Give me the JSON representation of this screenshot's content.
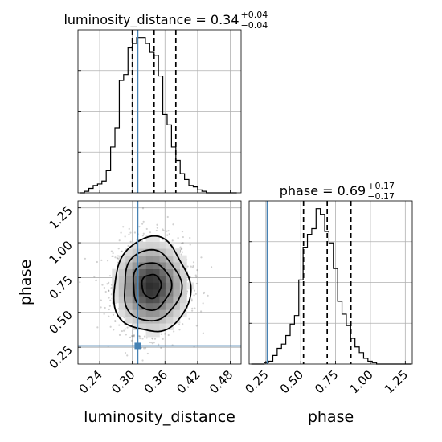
{
  "chart_data": {
    "type": "corner",
    "colors": {
      "truth": "#4682b4",
      "hist": "#000000",
      "density": "#808080",
      "grid": "#b0b0b0"
    },
    "parameters": [
      "luminosity_distance",
      "phase"
    ],
    "truth": {
      "luminosity_distance": 0.31,
      "phase": 0.26
    },
    "titles": {
      "luminosity_distance": {
        "prefix": "luminosity_distance = 0.34",
        "plus": "+0.04",
        "minus": "−0.04"
      },
      "phase": {
        "prefix": "phase = 0.69",
        "plus": "+0.17",
        "minus": "−0.17"
      }
    },
    "luminosity_distance": {
      "xlabel": "luminosity_distance",
      "xlim": [
        0.2,
        0.5
      ],
      "xticks": [
        0.24,
        0.3,
        0.36,
        0.42,
        0.48
      ],
      "xtick_labels": [
        "0.24",
        "0.30",
        "0.36",
        "0.42",
        "0.48"
      ],
      "quantiles": [
        0.3,
        0.34,
        0.38
      ],
      "hist": {
        "bin_edges": [
          0.204,
          0.212,
          0.22,
          0.228,
          0.236,
          0.244,
          0.252,
          0.26,
          0.268,
          0.276,
          0.284,
          0.292,
          0.3,
          0.308,
          0.316,
          0.324,
          0.332,
          0.34,
          0.348,
          0.356,
          0.364,
          0.372,
          0.38,
          0.388,
          0.396,
          0.404,
          0.412,
          0.42,
          0.428,
          0.436,
          0.444,
          0.452,
          0.46,
          0.468,
          0.476,
          0.484,
          0.492
        ],
        "counts": [
          0,
          1,
          3,
          5,
          6,
          8,
          15,
          31,
          44,
          76,
          80,
          98,
          101,
          105,
          105,
          101,
          95,
          93,
          79,
          53,
          46,
          31,
          22,
          13,
          9,
          5,
          4,
          2,
          1,
          0,
          0,
          0,
          0,
          0,
          0,
          0
        ]
      }
    },
    "phase": {
      "xlabel": "phase",
      "xlim": [
        0.13,
        1.3
      ],
      "xticks": [
        0.25,
        0.5,
        0.75,
        1.0,
        1.25
      ],
      "xtick_labels": [
        "0.25",
        "0.50",
        "0.75",
        "1.00",
        "1.25"
      ],
      "quantiles": [
        0.52,
        0.69,
        0.86
      ],
      "hist": {
        "bin_edges": [
          0.145,
          0.176,
          0.207,
          0.238,
          0.269,
          0.3,
          0.331,
          0.362,
          0.393,
          0.424,
          0.455,
          0.486,
          0.517,
          0.548,
          0.579,
          0.61,
          0.641,
          0.672,
          0.703,
          0.734,
          0.765,
          0.796,
          0.827,
          0.858,
          0.889,
          0.92,
          0.951,
          0.982,
          1.013,
          1.044,
          1.075,
          1.106,
          1.137,
          1.168,
          1.199,
          1.23,
          1.261,
          1.292
        ],
        "counts": [
          0,
          0,
          0,
          1,
          2,
          6,
          11,
          14,
          20,
          28,
          34,
          59,
          82,
          91,
          95,
          109,
          105,
          93,
          85,
          67,
          44,
          35,
          27,
          18,
          12,
          8,
          4,
          2,
          1,
          0,
          0,
          0,
          0,
          0,
          0,
          0,
          0
        ]
      }
    },
    "joint": {
      "xlim": [
        0.2,
        0.5
      ],
      "ylim": [
        0.13,
        1.3
      ],
      "ylabel": "phase",
      "yticks": [
        0.25,
        0.5,
        0.75,
        1.0,
        1.25
      ],
      "ytick_labels": [
        "0.25",
        "0.50",
        "0.75",
        "1.00",
        "1.25"
      ],
      "center": [
        0.335,
        0.69
      ],
      "sigma": [
        0.035,
        0.17
      ],
      "contour_levels": [
        0.5,
        1.0,
        1.5,
        2.0
      ],
      "density_levels": [
        0.5,
        1.0,
        1.5,
        2.0
      ]
    }
  }
}
